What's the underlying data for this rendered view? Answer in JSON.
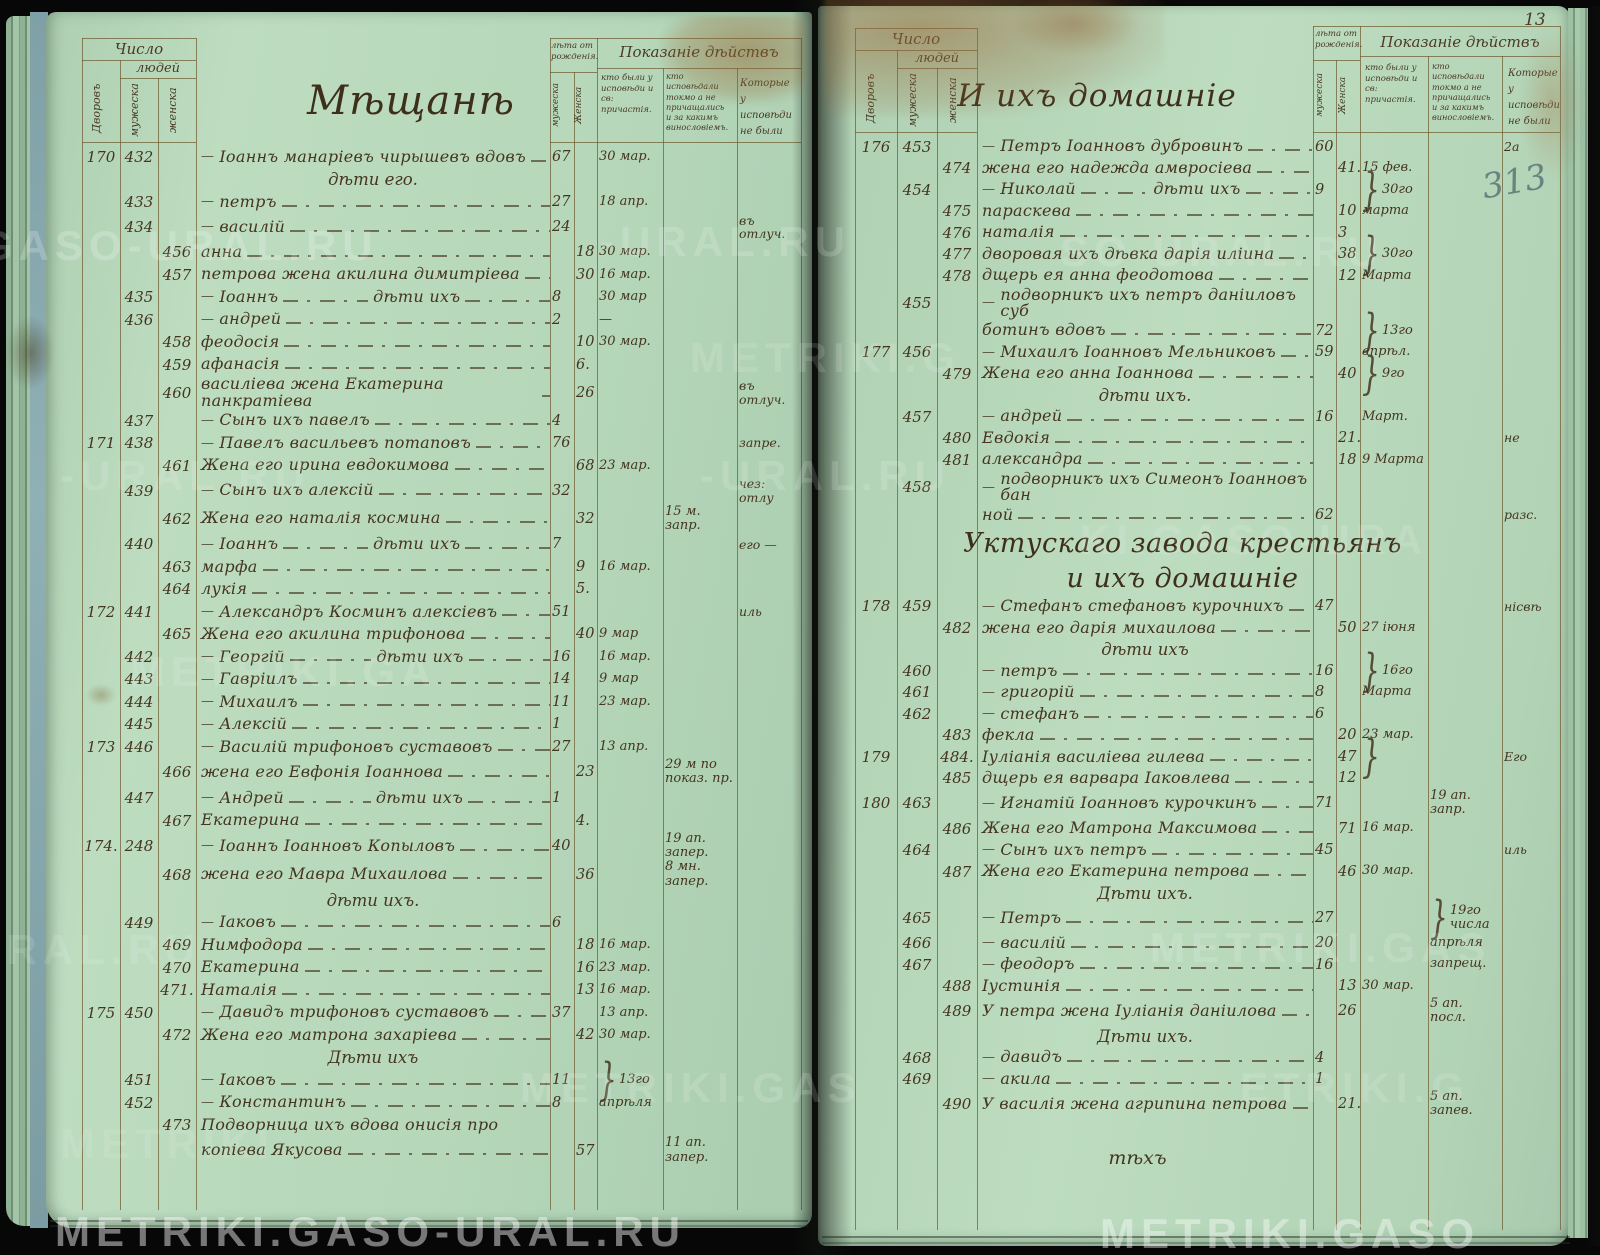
{
  "watermark": {
    "text": "METRIKI.GASO-URAL.RU"
  },
  "page_corner_number": "13",
  "pencil_mark": "313",
  "columns": {
    "count": "Число",
    "people": "людей",
    "households": "Дворовъ",
    "male": "мужеска",
    "female": "женска",
    "age": "лѣта от рожденія.",
    "age_male": "мужеска",
    "age_female": "Женска",
    "actions": "Показаніе дѣйствъ",
    "confessed": "кто были у исповѣди и св: причастія.",
    "confessed_only": "кто исповѣдали токмо а не причащались и за какимъ винословіемъ.",
    "absent": "Которые у исповѣди не были"
  },
  "left_page": {
    "title": "Мѣщанѣ",
    "rows": [
      {
        "h": "170",
        "m": "432",
        "pre": "—",
        "name": "Іоаннъ манаріевъ чирышевъ вдовъ",
        "am": "67",
        "d1": "30 мар."
      },
      {
        "t": "c",
        "name": "дѣти его."
      },
      {
        "m": "433",
        "pre": "—",
        "name": "петръ",
        "am": "27",
        "d1": "18 апр."
      },
      {
        "m": "434",
        "pre": "—",
        "name": "василій",
        "am": "24",
        "d3": "въ отлуч."
      },
      {
        "f": "456",
        "name": "анна",
        "af": "18",
        "d1": "30 мар."
      },
      {
        "f": "457",
        "name": "петрова жена акилина димитріева",
        "af": "30",
        "d1": "16 мар."
      },
      {
        "m": "435",
        "pre": "—",
        "name": "Іоаннъ",
        "mid": "дѣти ихъ",
        "am": "8",
        "d1": "30 мар"
      },
      {
        "m": "436",
        "pre": "—",
        "name": "андрей",
        "am": "2",
        "d1": "—"
      },
      {
        "f": "458",
        "name": "феодосія",
        "af": "10",
        "d1": "30 мар."
      },
      {
        "f": "459",
        "name": "афанасія",
        "af": "6."
      },
      {
        "f": "460",
        "name": "василіева жена Екатерина панкратіева",
        "af": "26",
        "d3": "въ отлуч."
      },
      {
        "m": "437",
        "pre": "—",
        "name": "Сынъ ихъ павелъ",
        "am": "4"
      },
      {
        "h": "171",
        "m": "438",
        "pre": "—",
        "name": "Павелъ васильевъ потаповъ",
        "am": "76",
        "d3": "запре."
      },
      {
        "f": "461",
        "name": "Жена его ирина евдокимова",
        "af": "68",
        "d1": "23 мар."
      },
      {
        "m": "439",
        "pre": "—",
        "name": "Сынъ ихъ алексій",
        "am": "32",
        "d3": "чез: отлу"
      },
      {
        "f": "462",
        "name": "Жена его наталія космина",
        "af": "32",
        "d2": "15 м. запр."
      },
      {
        "m": "440",
        "pre": "—",
        "name": "Іоаннъ",
        "mid": "дѣти ихъ",
        "am": "7",
        "d3": "его —"
      },
      {
        "f": "463",
        "name": "марфа",
        "af": "9",
        "d1": "16 мар."
      },
      {
        "f": "464",
        "name": "лукія",
        "af": "5."
      },
      {
        "h": "172",
        "m": "441",
        "pre": "—",
        "name": "Александръ Косминъ алексіевъ",
        "am": "51",
        "d3": "иль"
      },
      {
        "f": "465",
        "name": "Жена его акилина трифонова",
        "af": "40",
        "d1": "9 мар"
      },
      {
        "m": "442",
        "pre": "—",
        "name": "Георгій",
        "mid": "дѣти ихъ",
        "am": "16",
        "d1": "16 мар."
      },
      {
        "m": "443",
        "pre": "—",
        "name": "Гавріилъ",
        "am": "14",
        "d1": "9 мар"
      },
      {
        "m": "444",
        "pre": "—",
        "name": "Михаилъ",
        "am": "11",
        "d1": "23 мар."
      },
      {
        "m": "445",
        "pre": "—",
        "name": "Алексій",
        "am": "1"
      },
      {
        "h": "173",
        "m": "446",
        "pre": "—",
        "name": "Василій трифоновъ суставовъ",
        "am": "27",
        "d1": "13 апр."
      },
      {
        "f": "466",
        "name": "жена его Евфонія Іоаннова",
        "af": "23",
        "d2": "29 м по показ. пр."
      },
      {
        "m": "447",
        "pre": "—",
        "name": "Андрей",
        "mid": "дѣти ихъ",
        "am": "1"
      },
      {
        "f": "467",
        "name": "Екатерина",
        "af": "4."
      },
      {
        "h": "174.",
        "m": "248",
        "pre": "—",
        "name": "Іоаннъ Іоанновъ Копыловъ",
        "am": "40",
        "d2": "19 ап. запер."
      },
      {
        "f": "468",
        "name": "жена его Мавра Михаилова",
        "af": "36",
        "d2": "8 мн. запер."
      },
      {
        "t": "c",
        "name": "дѣти ихъ."
      },
      {
        "m": "449",
        "pre": "—",
        "name": "Іаковъ",
        "am": "6"
      },
      {
        "f": "469",
        "name": "Нимфодора",
        "af": "18",
        "d1": "16 мар."
      },
      {
        "f": "470",
        "name": "Екатерина",
        "af": "16",
        "d1": "23 мар."
      },
      {
        "f": "471.",
        "name": "Наталія",
        "af": "13",
        "d1": "16 мар."
      },
      {
        "h": "175",
        "m": "450",
        "pre": "—",
        "name": "Давидъ трифоновъ суставовъ",
        "am": "37",
        "d1": "13 апр."
      },
      {
        "f": "472",
        "name": "Жена его матрона захаріева",
        "af": "42",
        "d1": "30 мар."
      },
      {
        "t": "c",
        "name": "Дѣти ихъ"
      },
      {
        "m": "451",
        "pre": "—",
        "name": "Іаковъ",
        "am": "11",
        "br": 1,
        "d1": "13го"
      },
      {
        "m": "452",
        "pre": "—",
        "name": "Константинъ",
        "am": "8",
        "br": 2,
        "d1": "апрѣля"
      },
      {
        "f": "473",
        "name": "Подворница ихъ вдова онисія про",
        "nl": 1
      },
      {
        "name": "копіева Якусова",
        "af": "57",
        "d2": "11 ап. запер."
      }
    ]
  },
  "right_page": {
    "title": "И ихъ домашніе",
    "rows": [
      {
        "h": "176",
        "m": "453",
        "pre": "—",
        "name": "Петръ Іоанновъ дубровинъ",
        "am": "60",
        "d3": "2а"
      },
      {
        "f": "474",
        "name": "жена его надежда амвросіева",
        "af": "41.",
        "d1": "15 фев."
      },
      {
        "m": "454",
        "pre": "—",
        "name": "Николай",
        "mid": "дѣти ихъ",
        "am": "9",
        "br": 1,
        "d1": "30го"
      },
      {
        "f": "475",
        "name": "параскева",
        "af": "10",
        "br": 2,
        "d1": "марта"
      },
      {
        "f": "476",
        "name": "наталія",
        "af": "3"
      },
      {
        "f": "477",
        "name": "дворовая ихъ дѣвка дарія иліина",
        "af": "38",
        "br": 1,
        "d1": "30го"
      },
      {
        "f": "478",
        "name": "дщерь ея анна феодотова",
        "af": "12",
        "br": 2,
        "d1": "Марта"
      },
      {
        "m": "455",
        "pre": "—",
        "name": "подворникъ ихъ петръ даніиловъ суб",
        "nl": 1
      },
      {
        "name": "ботинъ вдовъ",
        "am": "72",
        "br": 1,
        "d1": "13го"
      },
      {
        "h": "177",
        "m": "456",
        "pre": "—",
        "name": "Михаилъ Іоанновъ Мельниковъ",
        "am": "59",
        "br": 2,
        "d1": "апрѣл."
      },
      {
        "f": "479",
        "name": "Жена его анна Іоаннова",
        "af": "40",
        "br": 1,
        "d1": "9го"
      },
      {
        "t": "c",
        "name": "дѣти ихъ."
      },
      {
        "m": "457",
        "pre": "—",
        "name": "андрей",
        "am": "16",
        "br": 2,
        "d1": "Март."
      },
      {
        "f": "480",
        "name": "Евдокія",
        "af": "21.",
        "d3": "не"
      },
      {
        "f": "481",
        "name": "александра",
        "af": "18",
        "d1": "9 Марта"
      },
      {
        "m": "458",
        "pre": "—",
        "name": "подворникъ ихъ Симеонъ Іоанновъ бан",
        "nl": 1
      },
      {
        "name": "ной",
        "am": "62",
        "d3": "разс."
      },
      {
        "t": "s",
        "name": "Уктускаго завода крестьянъ"
      },
      {
        "t": "s",
        "name": "и ихъ домашніе"
      },
      {
        "h": "178",
        "m": "459",
        "pre": "—",
        "name": "Стефанъ стефановъ курочнихъ",
        "am": "47",
        "d3": "нісвѣ"
      },
      {
        "f": "482",
        "name": "жена его дарія михаилова",
        "af": "50",
        "d1": "27 іюня"
      },
      {
        "t": "c",
        "name": "дѣти ихъ"
      },
      {
        "m": "460",
        "pre": "—",
        "name": "петръ",
        "am": "16",
        "br": 1,
        "d1": "16го"
      },
      {
        "m": "461",
        "pre": "—",
        "name": "григорій",
        "am": "8",
        "br": 2,
        "d1": "Марта"
      },
      {
        "m": "462",
        "pre": "—",
        "name": "стефанъ",
        "am": "6"
      },
      {
        "f": "483",
        "name": "фекла",
        "af": "20",
        "d1": "23 мар."
      },
      {
        "h": "179",
        "f": "484.",
        "name": "Іуліанія василіева гилева",
        "af": "47",
        "br": 1,
        "bc": "d1",
        "d3": "Его"
      },
      {
        "f": "485",
        "name": "дщерь ея варвара Іаковлева",
        "af": "12",
        "br": 2
      },
      {
        "h": "180",
        "m": "463",
        "pre": "—",
        "name": "Игнатій Іоанновъ курочкинъ",
        "am": "71",
        "d2": "19 ап. запр."
      },
      {
        "f": "486",
        "name": "Жена его Матрона Максимова",
        "af": "71",
        "d1": "16 мар."
      },
      {
        "m": "464",
        "pre": "—",
        "name": "Сынъ ихъ петръ",
        "am": "45",
        "d3": "иль"
      },
      {
        "f": "487",
        "name": "Жена его Екатерина петрова",
        "af": "46",
        "d1": "30 мар."
      },
      {
        "t": "c",
        "name": "Дѣти ихъ."
      },
      {
        "m": "465",
        "pre": "—",
        "name": "Петръ",
        "am": "27",
        "br": 1,
        "d2": "19го числа"
      },
      {
        "m": "466",
        "pre": "—",
        "name": "василій",
        "am": "20",
        "br": 2,
        "d2": "апрѣля"
      },
      {
        "m": "467",
        "pre": "—",
        "name": "феодоръ",
        "am": "16",
        "br": 2,
        "d2": "запрещ."
      },
      {
        "f": "488",
        "name": "Іустинія",
        "af": "13",
        "d1": "30 мар."
      },
      {
        "f": "489",
        "name": "У петра жена Іуліанія даніилова",
        "af": "26",
        "d2": "5 ап. посл."
      },
      {
        "t": "c",
        "name": "Дѣти ихъ."
      },
      {
        "m": "468",
        "pre": "—",
        "name": "давидъ",
        "am": "4"
      },
      {
        "m": "469",
        "pre": "—",
        "name": "акила",
        "am": "1"
      },
      {
        "f": "490",
        "name": "У василія жена агрипина петрова",
        "af": "21.",
        "d2": "5 ап. запев."
      },
      {
        "t": "f",
        "name": "тѣхъ"
      }
    ]
  }
}
